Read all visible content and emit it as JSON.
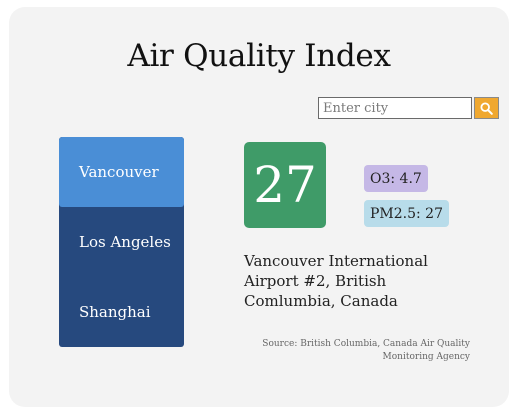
{
  "title": "Air Quality Index",
  "search": {
    "placeholder": "Enter city",
    "button_icon": "search-icon",
    "button_color": "#f0a830"
  },
  "cities": [
    {
      "label": "Vancouver",
      "active": true
    },
    {
      "label": "Los Angeles",
      "active": false
    },
    {
      "label": "Shanghai",
      "active": false
    }
  ],
  "aqi": {
    "value": "27",
    "color": "#3f9b68"
  },
  "pollutants": {
    "o3": "O3: 4.7",
    "pm25": "PM2.5: 27"
  },
  "station": "Vancouver International Airport #2, British Comlumbia, Canada",
  "source": "Source: British Columbia, Canada Air Quality Monitoring Agency",
  "colors": {
    "list_bg": "#26497e",
    "list_active": "#4a8ed6",
    "o3_badge": "#c5b8e6",
    "pm25_badge": "#b8dcea"
  }
}
